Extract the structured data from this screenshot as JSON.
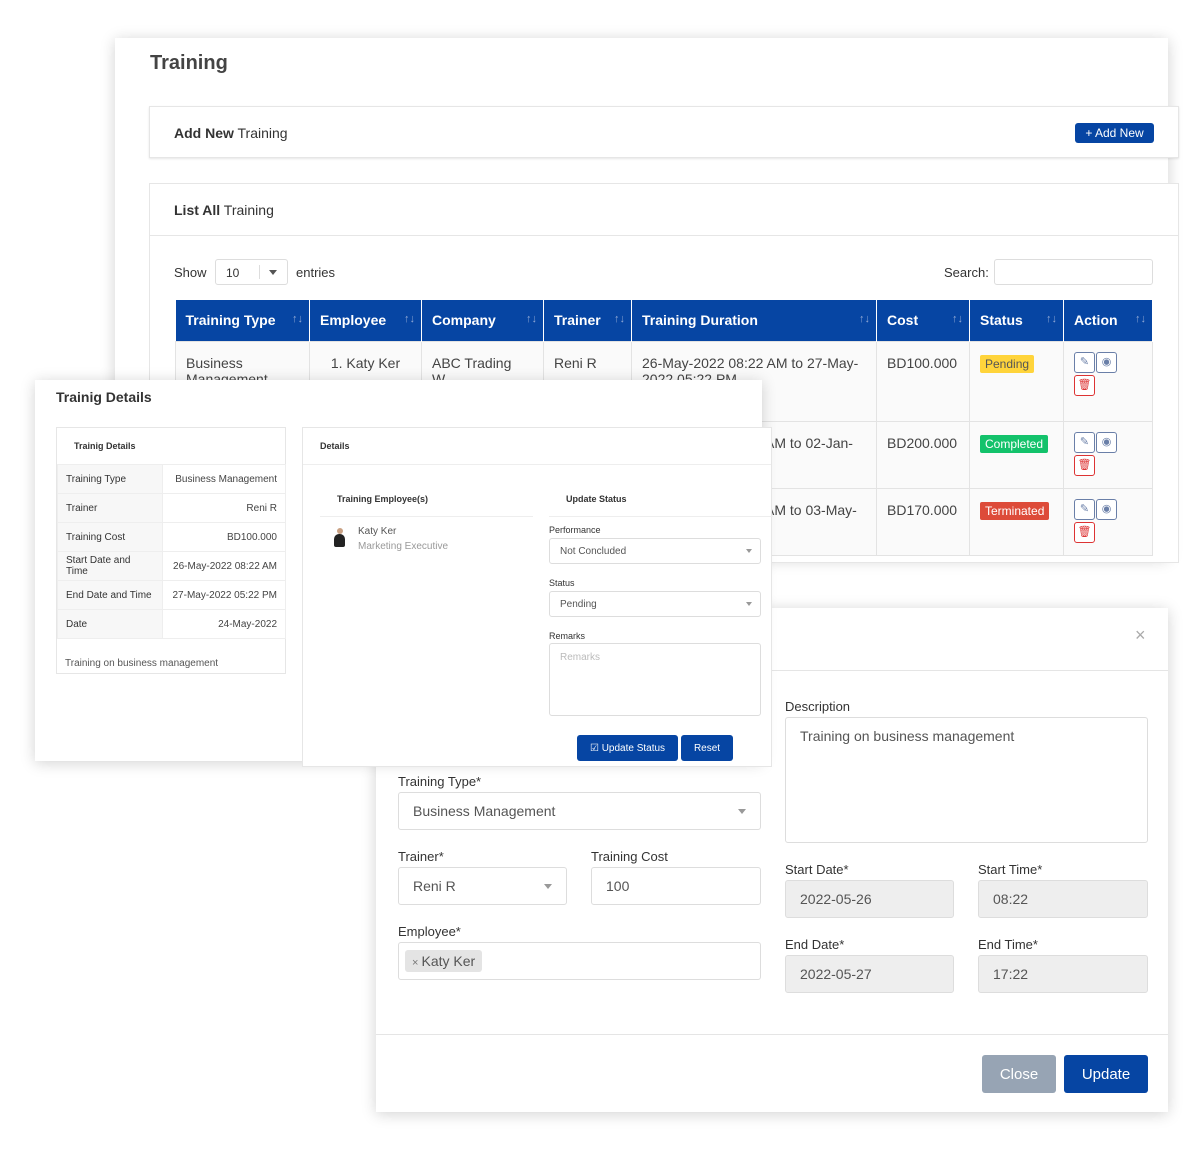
{
  "training_page": {
    "title": "Training",
    "add_card": {
      "title_bold": "Add New",
      "title_rest": " Training",
      "button": "+ Add New"
    },
    "list_card": {
      "title_bold": "List All",
      "title_rest": " Training"
    },
    "show_label": "Show",
    "entries_value": "10",
    "entries_label": "entries",
    "search_label": "Search:",
    "search_value": "",
    "columns": [
      "Training Type",
      "Employee",
      "Company",
      "Trainer",
      "Training Duration",
      "Cost",
      "Status",
      "Action"
    ],
    "rows": [
      {
        "type": "Business Management",
        "employee": "1. Katy Ker",
        "company": "ABC Trading W...",
        "trainer": "Reni R",
        "duration": "26-May-2022 08:22 AM to 27-May-2022 05:22 PM",
        "cost": "BD100.000",
        "status": "Pending",
        "status_color": "#ffd43b"
      },
      {
        "type": "",
        "employee": "",
        "company": "",
        "trainer": "",
        "duration": "AM to 02-Jan-",
        "cost": "BD200.000",
        "status": "Completed",
        "status_color": "#13c26b"
      },
      {
        "type": "",
        "employee": "",
        "company": "",
        "trainer": "",
        "duration": "AM to 03-May-",
        "cost": "BD170.000",
        "status": "Terminated",
        "status_color": "#dd4b39"
      }
    ]
  },
  "details_modal": {
    "title": "Trainig Details",
    "left_card_title": "Trainig Details",
    "rows": [
      {
        "label": "Training Type",
        "value": "Business Management"
      },
      {
        "label": "Trainer",
        "value": "Reni R"
      },
      {
        "label": "Training Cost",
        "value": "BD100.000"
      },
      {
        "label": "Start Date and Time",
        "value": "26-May-2022 08:22 AM"
      },
      {
        "label": "End Date and Time",
        "value": "27-May-2022 05:22 PM"
      },
      {
        "label": "Date",
        "value": "24-May-2022"
      }
    ],
    "description": "Training on business management",
    "right_card_title": "Details",
    "employees_title": "Training Employee(s)",
    "employee": {
      "name": "Katy Ker",
      "designation": "Marketing Executive"
    },
    "update_title": "Update Status",
    "performance_label": "Performance",
    "performance_value": "Not Concluded",
    "status_label": "Status",
    "status_value": "Pending",
    "remarks_label": "Remarks",
    "remarks_placeholder": "Remarks",
    "update_button": "Update Status",
    "reset_button": "Reset"
  },
  "edit_modal": {
    "close_icon": "×",
    "description_label": "Description",
    "description_value": "Training on business management",
    "training_type_label": "Training Type*",
    "training_type_value": "Business Management",
    "trainer_label": "Trainer*",
    "trainer_value": "Reni R",
    "cost_label": "Training Cost",
    "cost_value": "100",
    "employee_label": "Employee*",
    "employee_tag": "Katy Ker",
    "start_date_label": "Start Date*",
    "start_date_value": "2022-05-26",
    "start_time_label": "Start Time*",
    "start_time_value": "08:22",
    "end_date_label": "End Date*",
    "end_date_value": "2022-05-27",
    "end_time_label": "End Time*",
    "end_time_value": "17:22",
    "close_button": "Close",
    "update_button": "Update"
  },
  "colors": {
    "primary": "#0645a3",
    "pending": "#ffd43b",
    "completed": "#13c26b",
    "terminated": "#dd4b39",
    "close_button": "#97a4b4"
  }
}
